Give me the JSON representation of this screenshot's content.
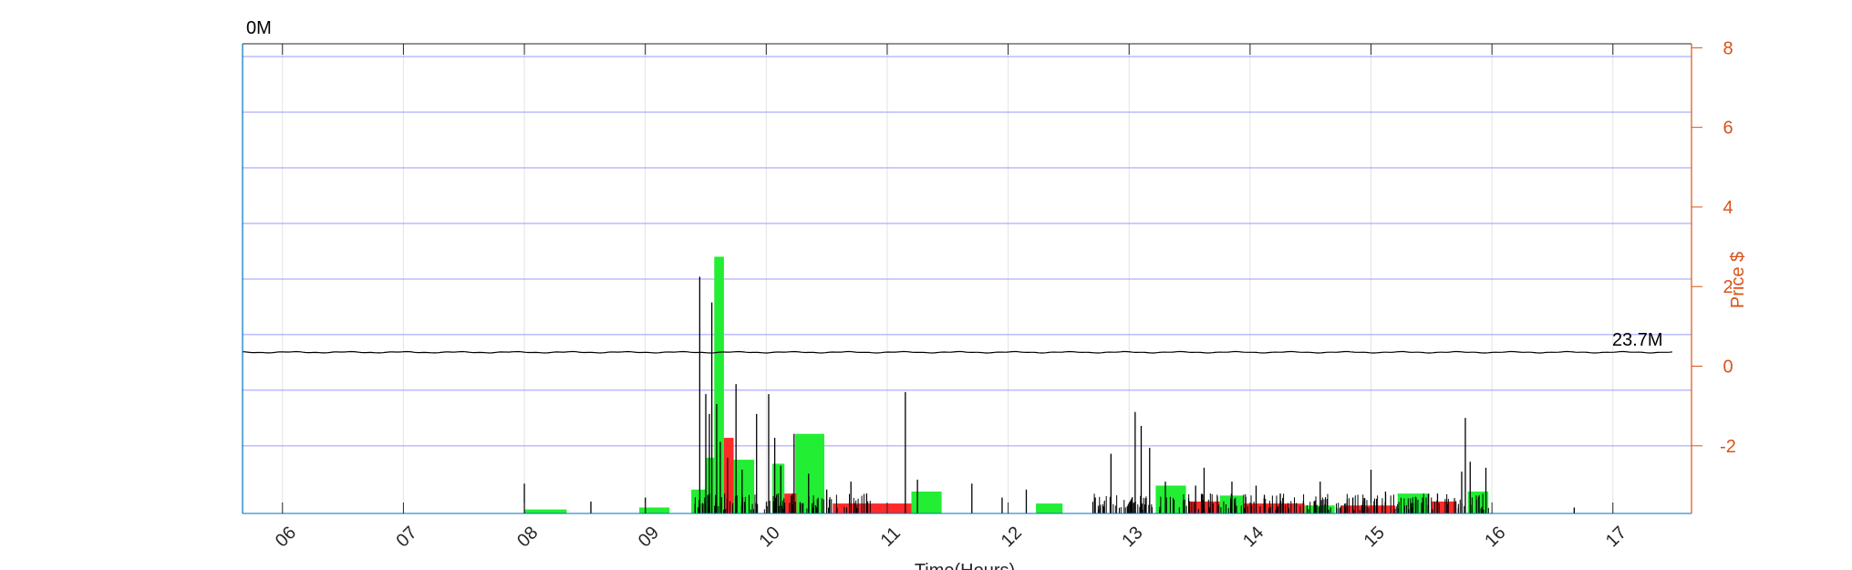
{
  "chart_data": {
    "type": "bar",
    "xlabel": "Time(Hours)",
    "ylabel_right": "Price $",
    "top_left_label": "0M",
    "line_end_label": "23.7M",
    "x_ticks": [
      "06",
      "07",
      "08",
      "09",
      "10",
      "11",
      "12",
      "13",
      "14",
      "15",
      "16",
      "17"
    ],
    "x_range_hours": [
      5.67,
      17.65
    ],
    "y_right_ticks": [
      -2,
      0,
      2,
      4,
      6,
      8
    ],
    "y_right_range": [
      -3.7,
      8.1
    ],
    "grid": true,
    "price_line": {
      "name": "price",
      "value_approx": 0.35,
      "start_hour": 5.67,
      "end_hour": 17.5
    },
    "green_bars": [
      {
        "x0": 8.0,
        "x1": 8.35,
        "v": -3.6
      },
      {
        "x0": 8.95,
        "x1": 9.2,
        "v": -3.55
      },
      {
        "x0": 9.38,
        "x1": 9.5,
        "v": -3.1
      },
      {
        "x0": 9.5,
        "x1": 9.57,
        "v": -2.3
      },
      {
        "x0": 9.57,
        "x1": 9.65,
        "v": 2.75
      },
      {
        "x0": 9.73,
        "x1": 9.9,
        "v": -2.35
      },
      {
        "x0": 10.05,
        "x1": 10.15,
        "v": -2.45
      },
      {
        "x0": 10.24,
        "x1": 10.48,
        "v": -1.7
      },
      {
        "x0": 11.2,
        "x1": 11.45,
        "v": -3.15
      },
      {
        "x0": 12.23,
        "x1": 12.45,
        "v": -3.45
      },
      {
        "x0": 13.22,
        "x1": 13.47,
        "v": -3.0
      },
      {
        "x0": 13.75,
        "x1": 13.95,
        "v": -3.25
      },
      {
        "x0": 14.45,
        "x1": 14.7,
        "v": -3.5
      },
      {
        "x0": 15.22,
        "x1": 15.47,
        "v": -3.2
      },
      {
        "x0": 15.8,
        "x1": 15.97,
        "v": -3.15
      }
    ],
    "red_bars": [
      {
        "x0": 8.25,
        "x1": 8.45,
        "v": -3.75
      },
      {
        "x0": 9.65,
        "x1": 9.73,
        "v": -1.8
      },
      {
        "x0": 10.15,
        "x1": 10.25,
        "v": -3.2
      },
      {
        "x0": 10.55,
        "x1": 11.2,
        "v": -3.45
      },
      {
        "x0": 11.5,
        "x1": 11.72,
        "v": -3.75
      },
      {
        "x0": 13.5,
        "x1": 13.75,
        "v": -3.4
      },
      {
        "x0": 13.95,
        "x1": 14.45,
        "v": -3.45
      },
      {
        "x0": 14.75,
        "x1": 15.2,
        "v": -3.5
      },
      {
        "x0": 15.5,
        "x1": 15.7,
        "v": -3.4
      }
    ],
    "volume_spikes": [
      {
        "x": 8.0,
        "v": -2.95
      },
      {
        "x": 8.55,
        "v": -3.4
      },
      {
        "x": 9.0,
        "v": -3.3
      },
      {
        "x": 9.45,
        "v": 2.25
      },
      {
        "x": 9.5,
        "v": -0.7
      },
      {
        "x": 9.55,
        "v": 1.6
      },
      {
        "x": 9.53,
        "v": -1.2
      },
      {
        "x": 9.59,
        "v": -0.95
      },
      {
        "x": 9.62,
        "v": -1.9
      },
      {
        "x": 9.75,
        "v": -0.45
      },
      {
        "x": 9.68,
        "v": -2.3
      },
      {
        "x": 9.8,
        "v": -2.6
      },
      {
        "x": 9.92,
        "v": -1.2
      },
      {
        "x": 10.02,
        "v": -0.7
      },
      {
        "x": 10.07,
        "v": -1.8
      },
      {
        "x": 10.12,
        "v": -2.5
      },
      {
        "x": 10.23,
        "v": -1.7
      },
      {
        "x": 10.35,
        "v": -2.7
      },
      {
        "x": 10.5,
        "v": -3.1
      },
      {
        "x": 10.7,
        "v": -2.9
      },
      {
        "x": 10.83,
        "v": -3.2
      },
      {
        "x": 11.15,
        "v": -0.65
      },
      {
        "x": 11.25,
        "v": -2.85
      },
      {
        "x": 11.7,
        "v": -2.95
      },
      {
        "x": 11.95,
        "v": -3.3
      },
      {
        "x": 12.15,
        "v": -3.1
      },
      {
        "x": 12.72,
        "v": -3.3
      },
      {
        "x": 12.85,
        "v": -2.2
      },
      {
        "x": 13.05,
        "v": -1.15
      },
      {
        "x": 13.1,
        "v": -1.5
      },
      {
        "x": 13.17,
        "v": -2.05
      },
      {
        "x": 13.3,
        "v": -2.9
      },
      {
        "x": 13.55,
        "v": -3.0
      },
      {
        "x": 13.62,
        "v": -2.55
      },
      {
        "x": 13.85,
        "v": -2.9
      },
      {
        "x": 14.05,
        "v": -3.0
      },
      {
        "x": 14.25,
        "v": -3.2
      },
      {
        "x": 14.58,
        "v": -2.9
      },
      {
        "x": 14.85,
        "v": -3.3
      },
      {
        "x": 15.0,
        "v": -2.6
      },
      {
        "x": 15.12,
        "v": -3.15
      },
      {
        "x": 15.55,
        "v": -3.2
      },
      {
        "x": 15.75,
        "v": -2.65
      },
      {
        "x": 15.78,
        "v": -1.3
      },
      {
        "x": 15.82,
        "v": -2.4
      },
      {
        "x": 15.95,
        "v": -2.55
      },
      {
        "x": 16.68,
        "v": -3.55
      }
    ]
  }
}
